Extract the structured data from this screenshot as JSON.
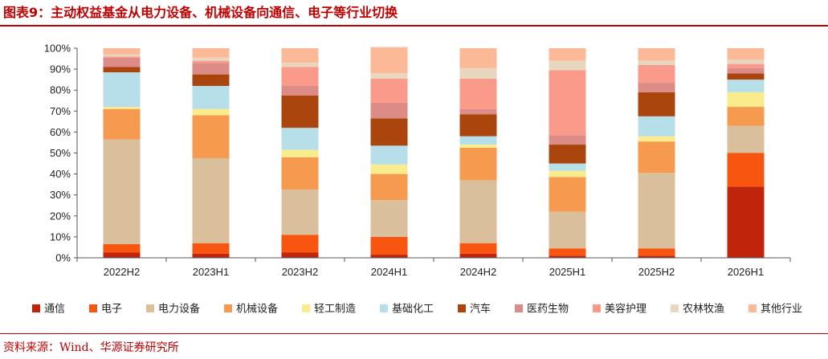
{
  "title": "图表9：主动权益基金从电力设备、机械设备向通信、电子等行业切换",
  "source": "资料来源：Wind、华源证券研究所",
  "chart_data": {
    "type": "bar",
    "stacked": true,
    "categories": [
      "2022H2",
      "2023H1",
      "2023H2",
      "2024H1",
      "2024H2",
      "2025H1",
      "2025H2",
      "2026H1"
    ],
    "y_ticks": [
      "0%",
      "10%",
      "20%",
      "30%",
      "40%",
      "50%",
      "60%",
      "70%",
      "80%",
      "90%",
      "100%"
    ],
    "ylim": [
      0,
      100
    ],
    "legend_position": "bottom",
    "series": [
      {
        "name": "通信",
        "color": "#c0250b",
        "values": [
          2.5,
          2.0,
          2.5,
          1.5,
          2.0,
          1.0,
          1.0,
          34.0
        ]
      },
      {
        "name": "电子",
        "color": "#f85610",
        "values": [
          4.0,
          5.0,
          8.5,
          8.5,
          5.0,
          3.5,
          3.5,
          16.0
        ]
      },
      {
        "name": "电力设备",
        "color": "#d9bf9c",
        "values": [
          50.0,
          40.5,
          21.5,
          17.5,
          30.0,
          17.5,
          36.0,
          13.0
        ]
      },
      {
        "name": "机械设备",
        "color": "#f59a4f",
        "values": [
          14.5,
          20.5,
          15.5,
          12.5,
          15.5,
          16.5,
          15.0,
          9.0
        ]
      },
      {
        "name": "轻工制造",
        "color": "#faec8c",
        "values": [
          1.0,
          3.0,
          3.5,
          4.5,
          1.5,
          3.0,
          2.5,
          7.0
        ]
      },
      {
        "name": "基础化工",
        "color": "#b7dfe9",
        "values": [
          16.5,
          11.0,
          10.5,
          9.0,
          4.0,
          3.5,
          9.5,
          6.0
        ]
      },
      {
        "name": "汽车",
        "color": "#a9450d",
        "values": [
          2.5,
          5.5,
          15.5,
          13.0,
          10.5,
          9.0,
          11.5,
          3.0
        ]
      },
      {
        "name": "医药生物",
        "color": "#dd8b86",
        "values": [
          4.5,
          5.5,
          4.5,
          7.5,
          2.5,
          4.5,
          4.5,
          2.5
        ]
      },
      {
        "name": "美容护理",
        "color": "#f99a8a",
        "values": [
          0.5,
          1.0,
          9.0,
          11.5,
          14.5,
          31.0,
          8.5,
          2.0
        ]
      },
      {
        "name": "农林牧渔",
        "color": "#e9d6bf",
        "values": [
          1.0,
          1.5,
          2.0,
          2.5,
          5.0,
          4.5,
          2.0,
          2.0
        ]
      },
      {
        "name": "其他行业",
        "color": "#fbb997",
        "values": [
          3.0,
          4.5,
          7.0,
          12.5,
          9.5,
          6.0,
          6.0,
          5.5
        ]
      }
    ]
  }
}
